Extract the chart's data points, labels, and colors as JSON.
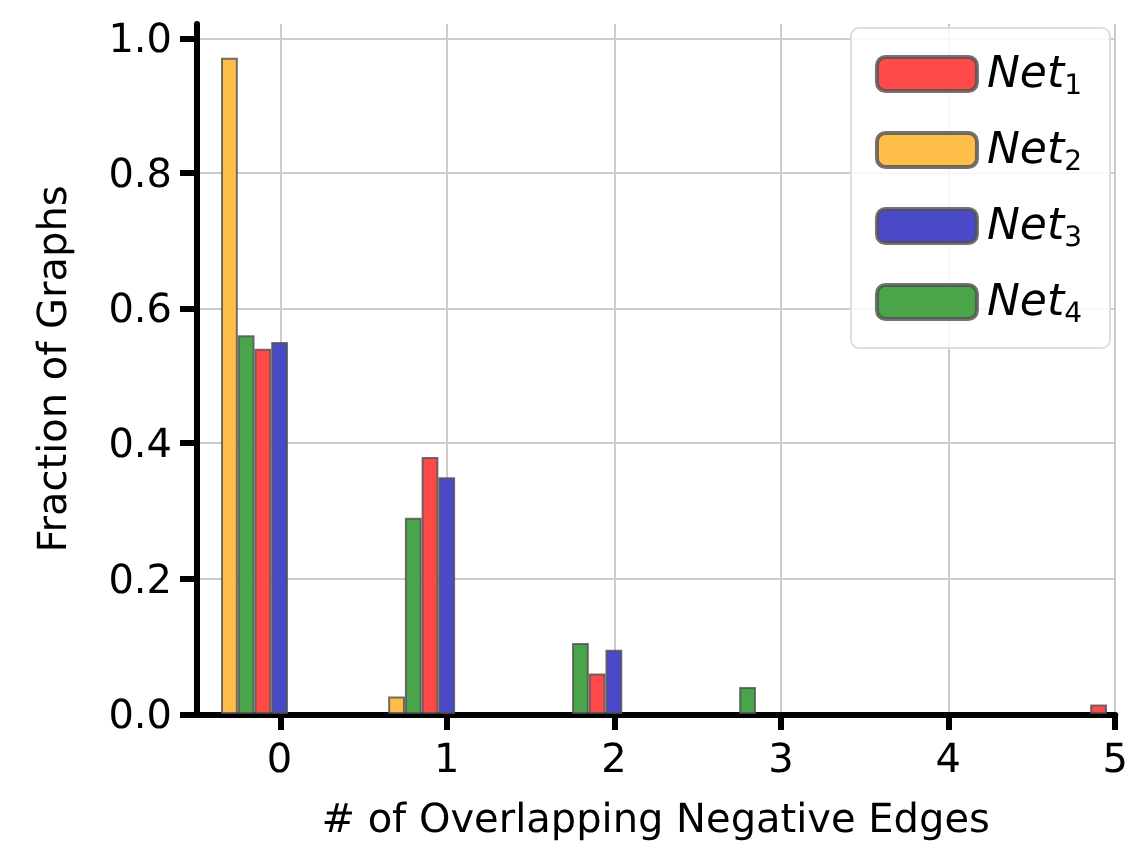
{
  "chart_data": {
    "type": "bar",
    "xlabel": "# of Overlapping Negative Edges",
    "ylabel": "Fraction of Graphs",
    "series": [
      {
        "name": "Net$_{1}$",
        "color": "#ff4a4a",
        "x": [
          -0.1,
          0.9,
          1.9,
          4.9
        ],
        "values": [
          0.54,
          0.38,
          0.06,
          0.014
        ]
      },
      {
        "name": "Net$_{2}$",
        "color": "#ffbe4a",
        "x": [
          -0.3,
          0.7
        ],
        "values": [
          0.97,
          0.026
        ]
      },
      {
        "name": "Net$_{3}$",
        "color": "#4a4ac8",
        "x": [
          0,
          1,
          2
        ],
        "values": [
          0.55,
          0.35,
          0.095
        ]
      },
      {
        "name": "Net$_{4}$",
        "color": "#4aa44a",
        "x": [
          -0.2,
          0.8,
          1.8,
          2.8
        ],
        "values": [
          0.56,
          0.29,
          0.105,
          0.04
        ]
      }
    ],
    "xlim": [
      -0.5,
      5
    ],
    "xticks": [
      0,
      1,
      2,
      3,
      4,
      5
    ],
    "ylim": [
      0,
      1.02
    ],
    "yticks": [
      {
        "value": 0,
        "label": "0.0"
      },
      {
        "value": 0.2,
        "label": "0.2"
      },
      {
        "value": 0.4,
        "label": "0.4"
      },
      {
        "value": 0.6,
        "label": "0.6"
      },
      {
        "value": 0.8,
        "label": "0.8"
      },
      {
        "value": 1,
        "label": "1.0"
      }
    ],
    "grid": true,
    "legend": "top right"
  }
}
